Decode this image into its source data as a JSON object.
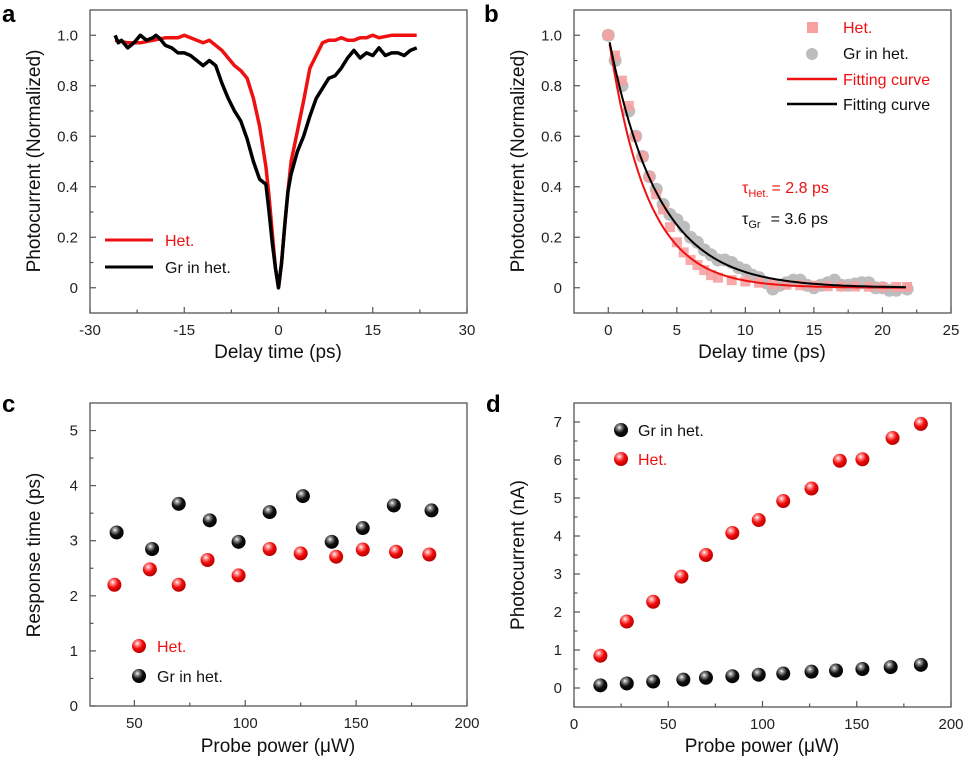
{
  "colors": {
    "het": "#ee1111",
    "gr": "#000000",
    "het_scatter_light": "#f7a0a0",
    "gr_scatter_light": "#bdbdbd"
  },
  "chart_data": [
    {
      "id": "a",
      "panel_label": "a",
      "type": "line",
      "title": "",
      "xlabel": "Delay time (ps)",
      "ylabel": "Photocurrent (Normalized)",
      "xlim": [
        -30,
        30
      ],
      "ylim": [
        -0.1,
        1.1
      ],
      "xticks": [
        -30,
        -15,
        0,
        15,
        30
      ],
      "xtick_labels": [
        "-30",
        "-15",
        "0",
        "15",
        "30"
      ],
      "yticks": [
        0,
        0.2,
        0.4,
        0.6,
        0.8,
        1.0
      ],
      "ytick_labels": [
        "0",
        "0.2",
        "0.4",
        "0.6",
        "0.8",
        "1.0"
      ],
      "legend_position": "bottom-left",
      "series": [
        {
          "name": "Het.",
          "color_key": "het",
          "x": [
            -26,
            -24,
            -22,
            -20,
            -18,
            -16,
            -15,
            -14,
            -12,
            -11,
            -10,
            -9,
            -8,
            -7,
            -6,
            -5,
            -4,
            -3,
            -2,
            -1.5,
            -1,
            -0.5,
            0,
            0.5,
            1,
            1.5,
            2,
            3,
            4,
            5,
            6,
            7,
            8,
            9,
            10,
            11,
            12,
            13,
            14,
            15,
            16,
            18,
            20,
            22
          ],
          "y": [
            0.98,
            0.97,
            0.97,
            0.98,
            0.99,
            0.99,
            1.0,
            0.99,
            0.97,
            0.98,
            0.96,
            0.94,
            0.91,
            0.88,
            0.86,
            0.83,
            0.75,
            0.64,
            0.48,
            0.36,
            0.22,
            0.08,
            0.0,
            0.1,
            0.25,
            0.38,
            0.5,
            0.62,
            0.74,
            0.87,
            0.92,
            0.97,
            0.98,
            0.98,
            0.99,
            0.98,
            0.98,
            0.99,
            0.99,
            1.0,
            0.99,
            1.0,
            1.0,
            1.0
          ]
        },
        {
          "name": "Gr in het.",
          "color_key": "gr",
          "x": [
            -26,
            -25.5,
            -25,
            -24,
            -23,
            -22,
            -21,
            -20,
            -19.5,
            -19,
            -18,
            -17,
            -16,
            -15,
            -14,
            -13,
            -12,
            -11,
            -10,
            -9,
            -8,
            -7,
            -6,
            -5,
            -4,
            -3,
            -2,
            -1.5,
            -1,
            -0.5,
            0,
            0.5,
            1,
            1.5,
            2,
            3,
            4,
            5,
            6,
            7,
            8,
            9,
            10,
            11,
            12,
            13,
            14,
            15,
            16,
            17,
            18,
            19,
            20,
            21,
            22
          ],
          "y": [
            1.0,
            0.97,
            0.98,
            0.95,
            0.97,
            1.0,
            0.98,
            0.99,
            1.0,
            0.99,
            0.96,
            0.95,
            0.93,
            0.93,
            0.92,
            0.9,
            0.88,
            0.9,
            0.88,
            0.81,
            0.75,
            0.7,
            0.66,
            0.59,
            0.5,
            0.43,
            0.41,
            0.3,
            0.18,
            0.08,
            0.0,
            0.1,
            0.25,
            0.38,
            0.45,
            0.54,
            0.6,
            0.68,
            0.75,
            0.79,
            0.83,
            0.84,
            0.87,
            0.91,
            0.94,
            0.91,
            0.93,
            0.92,
            0.95,
            0.92,
            0.93,
            0.93,
            0.92,
            0.94,
            0.95
          ]
        }
      ]
    },
    {
      "id": "b",
      "panel_label": "b",
      "type": "scatter",
      "title": "",
      "xlabel": "Delay time (ps)",
      "ylabel": "Photocurrent (Normalized)",
      "xlim": [
        -2.5,
        25
      ],
      "ylim": [
        -0.1,
        1.1
      ],
      "xticks": [
        0,
        5,
        10,
        15,
        20,
        25
      ],
      "xtick_labels": [
        "0",
        "5",
        "10",
        "15",
        "20",
        "25"
      ],
      "yticks": [
        0,
        0.2,
        0.4,
        0.6,
        0.8,
        1.0
      ],
      "ytick_labels": [
        "0",
        "0.2",
        "0.4",
        "0.6",
        "0.8",
        "1.0"
      ],
      "legend_position": "top-right",
      "series": [
        {
          "name": "Het.",
          "kind": "data-squares",
          "color_key": "het_scatter_light",
          "x": [
            0,
            0.5,
            1,
            1.5,
            2,
            2.5,
            3,
            3.5,
            4,
            4.5,
            5,
            5.5,
            6,
            6.5,
            7,
            7.5,
            8,
            9,
            10,
            11,
            12,
            13,
            14,
            15,
            16,
            17,
            18,
            19,
            20,
            21,
            21.8
          ],
          "y": [
            1.0,
            0.92,
            0.82,
            0.72,
            0.6,
            0.52,
            0.44,
            0.37,
            0.31,
            0.24,
            0.18,
            0.14,
            0.11,
            0.09,
            0.07,
            0.05,
            0.04,
            0.03,
            0.025,
            0.02,
            0.015,
            0.012,
            0.01,
            0.008,
            0.006,
            0.005,
            0.005,
            0.004,
            0.003,
            0.003,
            0.003
          ]
        },
        {
          "name": "Gr in het.",
          "kind": "data-circles",
          "color_key": "gr_scatter_light",
          "x": [
            0,
            0.5,
            1,
            1.5,
            2,
            2.5,
            3,
            3.5,
            4,
            4.5,
            5,
            5.5,
            6,
            6.5,
            7,
            7.5,
            8,
            8.5,
            9,
            9.5,
            10,
            10.5,
            11,
            11.5,
            12,
            12.5,
            13,
            13.5,
            14,
            14.5,
            15,
            15.5,
            16,
            16.5,
            17,
            17.5,
            18,
            18.5,
            19,
            19.5,
            20,
            20.5,
            21,
            21.8
          ],
          "y": [
            1.0,
            0.9,
            0.8,
            0.7,
            0.6,
            0.52,
            0.44,
            0.39,
            0.33,
            0.29,
            0.27,
            0.24,
            0.2,
            0.18,
            0.15,
            0.13,
            0.11,
            0.11,
            0.1,
            0.08,
            0.07,
            0.05,
            0.04,
            0.02,
            -0.005,
            0.01,
            0.02,
            0.03,
            0.03,
            0.01,
            0.0,
            0.01,
            0.02,
            0.03,
            0.01,
            0.01,
            0.015,
            0.02,
            0.02,
            0.0,
            0.0,
            -0.01,
            -0.01,
            -0.005
          ]
        },
        {
          "name": "Fitting curve",
          "kind": "fit-line",
          "color_key": "het",
          "tau_ps": 2.8
        },
        {
          "name": "Fitting curve",
          "kind": "fit-line",
          "color_key": "gr",
          "tau_ps": 3.6
        }
      ],
      "annotations": [
        {
          "symbol": "τ",
          "subscript": "Het.",
          "text": "= 2.8 ps",
          "color_key": "het"
        },
        {
          "symbol": "τ",
          "subscript": "Gr",
          "text": "= 3.6 ps",
          "color_key": "gr"
        }
      ]
    },
    {
      "id": "c",
      "panel_label": "c",
      "type": "scatter",
      "title": "",
      "xlabel": "Probe power (μW)",
      "ylabel": "Response time (ps)",
      "xlim": [
        30,
        200
      ],
      "ylim": [
        0,
        5.5
      ],
      "xticks": [
        50,
        100,
        150,
        200
      ],
      "xtick_labels": [
        "50",
        "100",
        "150",
        "200"
      ],
      "yticks": [
        0,
        1,
        2,
        3,
        4,
        5
      ],
      "ytick_labels": [
        "0",
        "1",
        "2",
        "3",
        "4",
        "5"
      ],
      "legend_position": "bottom-left",
      "series": [
        {
          "name": "Het.",
          "color_key": "het",
          "x": [
            41,
            57,
            70,
            83,
            97,
            111,
            125,
            141,
            153,
            168,
            183
          ],
          "y": [
            2.2,
            2.48,
            2.2,
            2.65,
            2.37,
            2.85,
            2.77,
            2.71,
            2.84,
            2.8,
            2.75
          ]
        },
        {
          "name": "Gr in het.",
          "color_key": "gr",
          "x": [
            42,
            58,
            70,
            84,
            97,
            111,
            126,
            139,
            153,
            167,
            184
          ],
          "y": [
            3.15,
            2.85,
            3.67,
            3.37,
            2.98,
            3.52,
            3.81,
            2.98,
            3.23,
            3.64,
            3.55
          ]
        }
      ]
    },
    {
      "id": "d",
      "panel_label": "d",
      "type": "scatter",
      "title": "",
      "xlabel": "Probe power (μW)",
      "ylabel": "Photocurrent (nA)",
      "xlim": [
        0,
        200
      ],
      "ylim": [
        -0.5,
        7.5
      ],
      "xticks": [
        0,
        50,
        100,
        150,
        200
      ],
      "xtick_labels": [
        "0",
        "50",
        "100",
        "150",
        "200"
      ],
      "yticks": [
        0,
        1,
        2,
        3,
        4,
        5,
        6,
        7
      ],
      "ytick_labels": [
        "0",
        "1",
        "2",
        "3",
        "4",
        "5",
        "6",
        "7"
      ],
      "legend_position": "top-left",
      "series": [
        {
          "name": "Gr in het.",
          "color_key": "gr",
          "x": [
            14,
            28,
            42,
            58,
            70,
            84,
            98,
            111,
            126,
            139,
            153,
            168,
            184
          ],
          "y": [
            0.07,
            0.12,
            0.17,
            0.22,
            0.27,
            0.31,
            0.35,
            0.38,
            0.43,
            0.46,
            0.5,
            0.55,
            0.61
          ]
        },
        {
          "name": "Het.",
          "color_key": "het",
          "x": [
            14,
            28,
            42,
            57,
            70,
            84,
            98,
            111,
            126,
            141,
            153,
            169,
            184
          ],
          "y": [
            0.85,
            1.75,
            2.27,
            2.93,
            3.5,
            4.08,
            4.42,
            4.92,
            5.25,
            5.98,
            6.02,
            6.58,
            6.95
          ]
        }
      ]
    }
  ]
}
